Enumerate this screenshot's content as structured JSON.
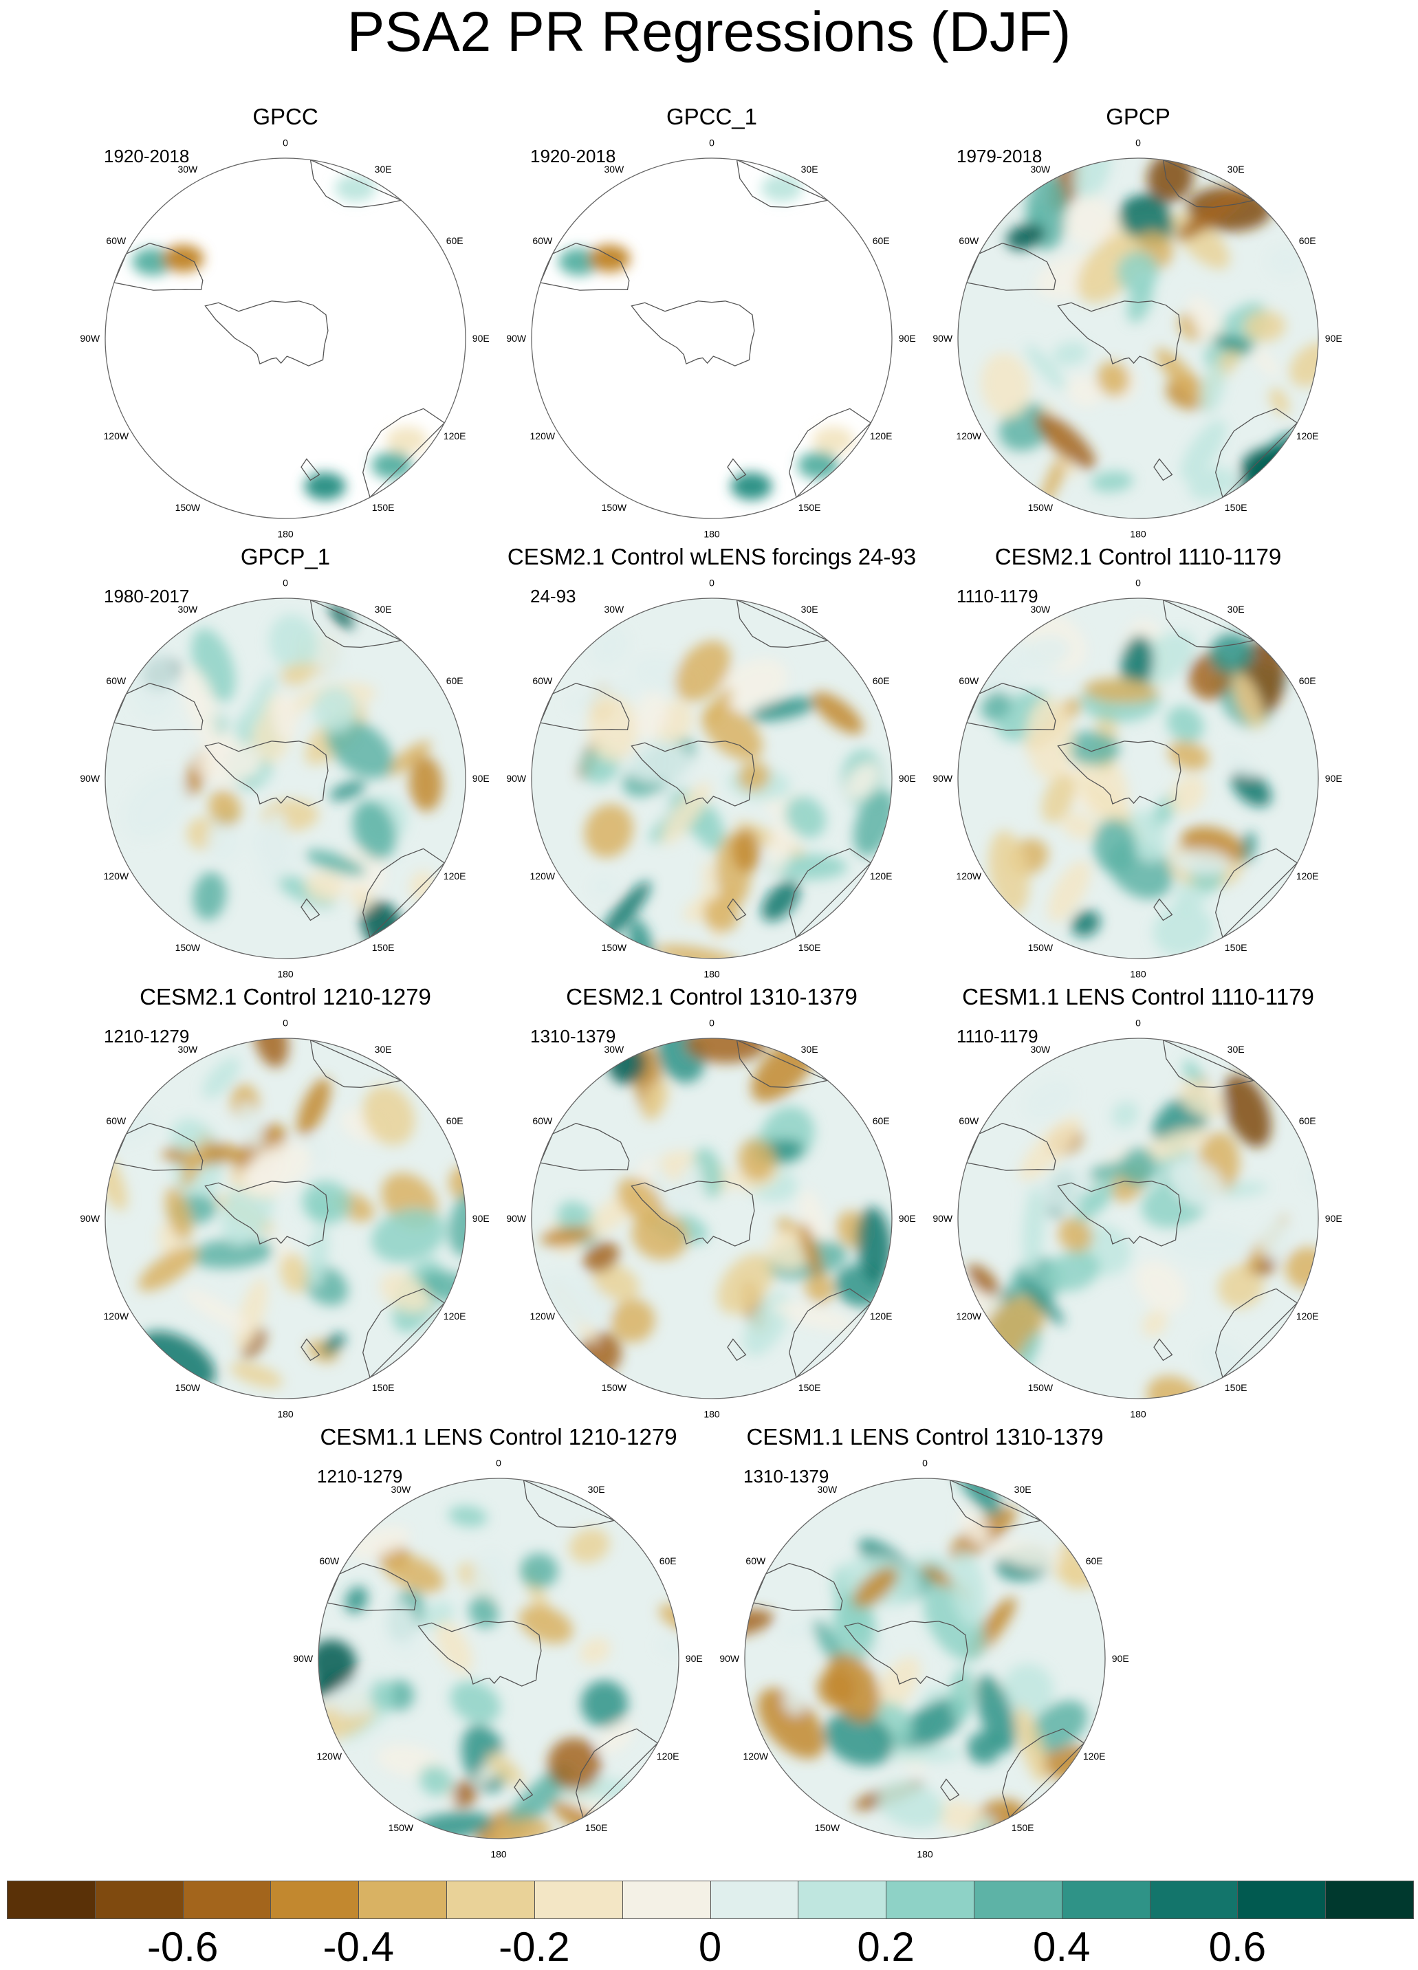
{
  "title": "PSA2 PR Regressions (DJF)",
  "lon_labels": [
    "0",
    "30E",
    "60E",
    "90E",
    "120E",
    "150E",
    "180",
    "150W",
    "120W",
    "90W",
    "60W",
    "30W"
  ],
  "panels": [
    {
      "title": "GPCC",
      "period": "1920-2018",
      "coverage": "land"
    },
    {
      "title": "GPCC_1",
      "period": "1920-2018",
      "coverage": "land"
    },
    {
      "title": "GPCP",
      "period": "1979-2018",
      "coverage": "full"
    },
    {
      "title": "GPCP_1",
      "period": "1980-2017",
      "coverage": "full"
    },
    {
      "title": "CESM2.1 Control wLENS forcings 24-93",
      "period": "24-93",
      "coverage": "full"
    },
    {
      "title": "CESM2.1 Control 1110-1179",
      "period": "1110-1179",
      "coverage": "full"
    },
    {
      "title": "CESM2.1 Control 1210-1279",
      "period": "1210-1279",
      "coverage": "full"
    },
    {
      "title": "CESM2.1 Control 1310-1379",
      "period": "1310-1379",
      "coverage": "full"
    },
    {
      "title": "CESM1.1 LENS Control 1110-1179",
      "period": "1110-1179",
      "coverage": "full"
    },
    {
      "title": "CESM1.1 LENS Control 1210-1279",
      "period": "1210-1279",
      "coverage": "full"
    },
    {
      "title": "CESM1.1 LENS Control 1310-1379",
      "period": "1310-1379",
      "coverage": "full"
    }
  ],
  "colorbar": {
    "colors": [
      "#5a3107",
      "#7f4a0f",
      "#a3651c",
      "#c2882f",
      "#d9b263",
      "#e9d298",
      "#f3e6c5",
      "#f4f1e6",
      "#e0efed",
      "#bfe6df",
      "#8ed2c6",
      "#5db3a6",
      "#2f9387",
      "#13756b",
      "#015a50",
      "#00392e"
    ],
    "tick_labels": [
      "-0.6",
      "-0.4",
      "-0.2",
      "0",
      "0.2",
      "0.4",
      "0.6"
    ]
  }
}
